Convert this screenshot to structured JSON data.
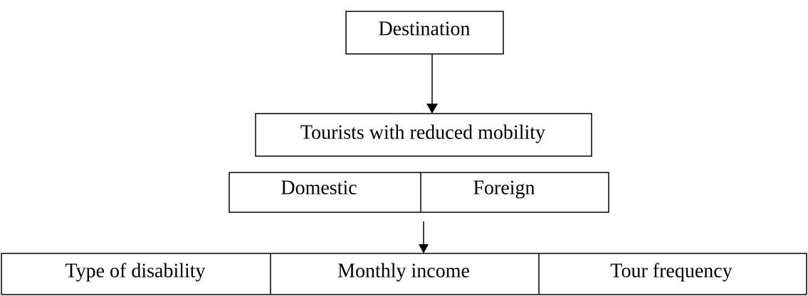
{
  "nodes": [
    {
      "label": "Destination"
    },
    {
      "label": "Tourists with reduced mobility"
    },
    {
      "label": "Domestic"
    },
    {
      "label": "Foreign"
    },
    {
      "label": "Type of disability"
    },
    {
      "label": "Monthly income"
    },
    {
      "label": "Tour frequency"
    }
  ]
}
